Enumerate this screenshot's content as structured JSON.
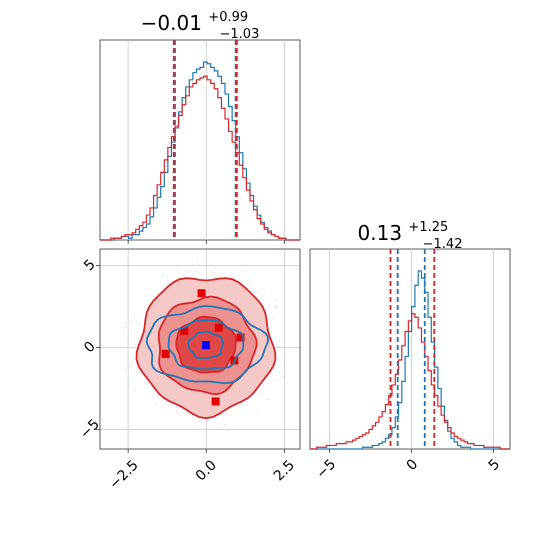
{
  "chart_data": [
    {
      "type": "histogram",
      "panel": "marginal-x",
      "title": {
        "median": "−0.01",
        "plus": "+0.99",
        "minus": "−1.03"
      },
      "xlim": [
        -3.4,
        3.0
      ],
      "xticks": [
        -2.5,
        0.0,
        2.5
      ],
      "grid": true,
      "series": [
        {
          "color": "#1f77b4",
          "quantile_lines": [
            -1.0,
            0.94
          ],
          "counts": [
            0,
            0,
            0,
            0,
            1,
            1,
            2,
            2,
            1,
            3,
            3,
            5,
            7,
            9,
            13,
            18,
            24,
            30,
            38,
            47,
            55,
            63,
            72,
            80,
            86,
            90,
            94,
            96,
            97,
            100,
            99,
            97,
            95,
            92,
            88,
            82,
            75,
            67,
            58,
            49,
            40,
            32,
            25,
            19,
            14,
            10,
            7,
            5,
            3,
            2,
            1,
            1,
            0,
            0,
            0,
            0
          ]
        },
        {
          "color": "#d62728",
          "quantile_lines": [
            -1.04,
            0.98
          ],
          "counts": [
            0,
            0,
            0,
            1,
            1,
            1,
            2,
            3,
            3,
            4,
            6,
            8,
            10,
            14,
            18,
            25,
            31,
            38,
            45,
            52,
            58,
            64,
            70,
            76,
            81,
            86,
            88,
            90,
            91,
            92,
            90,
            88,
            85,
            80,
            74,
            68,
            61,
            55,
            49,
            42,
            35,
            28,
            22,
            17,
            12,
            9,
            6,
            4,
            3,
            2,
            1,
            1,
            0,
            0,
            0,
            0
          ]
        }
      ]
    },
    {
      "type": "histogram",
      "panel": "marginal-y",
      "title": {
        "median": "0.13",
        "plus": "+1.25",
        "minus": "−1.42"
      },
      "xlim": [
        -6.2,
        6.0
      ],
      "xticks": [
        -5,
        0,
        5
      ],
      "grid": true,
      "series": [
        {
          "color": "#1f77b4",
          "quantile_lines": [
            -0.85,
            0.8
          ],
          "counts": [
            0,
            0,
            0,
            0,
            0,
            0,
            0,
            0,
            0,
            0,
            0,
            0,
            0,
            0,
            0,
            0,
            1,
            1,
            1,
            2,
            2,
            3,
            4,
            6,
            8,
            12,
            18,
            26,
            38,
            52,
            66,
            80,
            92,
            100,
            96,
            88,
            74,
            60,
            46,
            34,
            24,
            16,
            10,
            6,
            4,
            2,
            1,
            1,
            1,
            0,
            0,
            0,
            0,
            0,
            0,
            0,
            0,
            0,
            0,
            0,
            0
          ]
        },
        {
          "color": "#d62728",
          "quantile_lines": [
            -1.29,
            1.38
          ],
          "counts": [
            0,
            0,
            1,
            1,
            1,
            2,
            2,
            2,
            3,
            3,
            3,
            4,
            4,
            5,
            6,
            7,
            8,
            9,
            11,
            13,
            15,
            18,
            21,
            25,
            30,
            36,
            42,
            50,
            58,
            66,
            72,
            76,
            74,
            68,
            60,
            52,
            44,
            36,
            30,
            24,
            19,
            15,
            12,
            9,
            7,
            6,
            5,
            4,
            3,
            3,
            2,
            2,
            2,
            1,
            1,
            1,
            1,
            1,
            0,
            0,
            0
          ]
        }
      ]
    },
    {
      "type": "contour",
      "panel": "joint",
      "xlim": [
        -3.4,
        3.0
      ],
      "ylim": [
        -6.2,
        6.0
      ],
      "xticks": [
        -2.5,
        0.0,
        2.5
      ],
      "yticks": [
        -5,
        0,
        5
      ],
      "grid": true,
      "series": [
        {
          "color": "#d62728",
          "levels": [
            {
              "rx": 2.15,
              "ry": 4.2
            },
            {
              "rx": 1.55,
              "ry": 2.9
            },
            {
              "rx": 0.95,
              "ry": 1.7
            }
          ],
          "outliers": [
            [
              -0.15,
              3.3
            ],
            [
              0.4,
              1.2
            ],
            [
              0.9,
              -0.8
            ],
            [
              -1.3,
              -0.4
            ],
            [
              0.3,
              -3.3
            ],
            [
              1.1,
              0.6
            ],
            [
              -0.7,
              1.0
            ]
          ]
        },
        {
          "color": "#1f77b4",
          "levels": [
            {
              "rx": 1.9,
              "ry": 2.3
            },
            {
              "rx": 1.2,
              "ry": 1.5
            },
            {
              "rx": 0.55,
              "ry": 0.8
            }
          ]
        }
      ],
      "center_point": {
        "x": -0.01,
        "y": 0.13,
        "color": "#0000ff"
      },
      "tick_labels": {
        "x": [
          "−2.5",
          "0.0",
          "2.5"
        ],
        "y": [
          "−5",
          "0",
          "5"
        ]
      }
    }
  ],
  "marginal_y_tick_labels": [
    "−5",
    "0",
    "5"
  ]
}
